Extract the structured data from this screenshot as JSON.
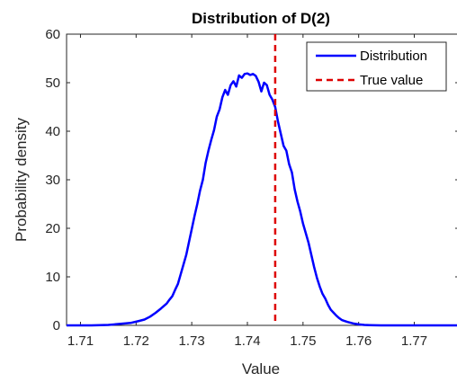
{
  "chart_data": {
    "type": "line",
    "title": "Distribution of D(2)",
    "xlabel": "Value",
    "ylabel": "Probability density",
    "xlim": [
      1.7075,
      1.778
    ],
    "ylim": [
      0,
      60
    ],
    "xticks": [
      1.71,
      1.72,
      1.73,
      1.74,
      1.75,
      1.76,
      1.77
    ],
    "xtick_labels": [
      "1.71",
      "1.72",
      "1.73",
      "1.74",
      "1.75",
      "1.76",
      "1.77"
    ],
    "yticks": [
      0,
      10,
      20,
      30,
      40,
      50,
      60
    ],
    "ytick_labels": [
      "0",
      "10",
      "20",
      "30",
      "40",
      "50",
      "60"
    ],
    "grid": false,
    "legend_position": "top-right",
    "legend": [
      {
        "label": "Distribution",
        "color": "#0000ff",
        "style": "solid"
      },
      {
        "label": "True value",
        "color": "#dd0000",
        "style": "dashed"
      }
    ],
    "series": [
      {
        "name": "Distribution",
        "color": "#0000ff",
        "x": [
          1.7075,
          1.712,
          1.715,
          1.717,
          1.719,
          1.7205,
          1.7215,
          1.7225,
          1.7235,
          1.7245,
          1.7255,
          1.726,
          1.7265,
          1.727,
          1.7275,
          1.728,
          1.7285,
          1.729,
          1.7295,
          1.73,
          1.7305,
          1.731,
          1.7315,
          1.732,
          1.7325,
          1.733,
          1.7335,
          1.734,
          1.7345,
          1.735,
          1.7355,
          1.736,
          1.7365,
          1.737,
          1.7375,
          1.738,
          1.7385,
          1.739,
          1.7395,
          1.74,
          1.7405,
          1.741,
          1.7415,
          1.742,
          1.7425,
          1.743,
          1.7435,
          1.744,
          1.7445,
          1.745,
          1.7455,
          1.746,
          1.7465,
          1.747,
          1.7475,
          1.748,
          1.7485,
          1.749,
          1.7495,
          1.75,
          1.7505,
          1.751,
          1.7515,
          1.752,
          1.7525,
          1.753,
          1.7535,
          1.754,
          1.7545,
          1.755,
          1.7555,
          1.756,
          1.7565,
          1.757,
          1.758,
          1.759,
          1.76,
          1.761,
          1.762,
          1.764,
          1.766,
          1.77,
          1.778
        ],
        "y": [
          0,
          0,
          0.1,
          0.3,
          0.5,
          0.9,
          1.2,
          1.8,
          2.6,
          3.5,
          4.5,
          5.3,
          6.0,
          7.3,
          8.5,
          10.5,
          12.5,
          14.5,
          17.2,
          19.8,
          22.5,
          25.0,
          27.8,
          30.0,
          33.5,
          36.0,
          38.2,
          40.2,
          43.0,
          44.5,
          47.0,
          48.5,
          47.5,
          49.5,
          50.3,
          49.2,
          51.5,
          51.0,
          51.8,
          51.9,
          51.6,
          51.8,
          51.4,
          50.2,
          48.2,
          50.0,
          49.5,
          47.5,
          46.5,
          45.0,
          42.0,
          39.5,
          37.0,
          36.0,
          33.2,
          31.5,
          28.0,
          25.5,
          23.5,
          21.0,
          19.0,
          17.0,
          14.5,
          12.0,
          9.8,
          8.0,
          6.5,
          5.5,
          4.2,
          3.2,
          2.6,
          2.0,
          1.5,
          1.1,
          0.7,
          0.4,
          0.2,
          0.1,
          0.05,
          0,
          0,
          0,
          0
        ]
      }
    ],
    "true_value": 1.745
  }
}
